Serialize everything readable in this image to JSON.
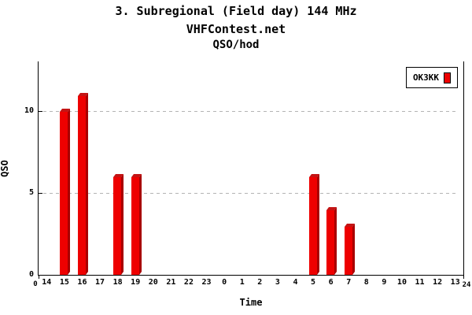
{
  "header": {
    "title": "3. Subregional (Field day) 144 MHz",
    "subtitle": "VHFContest.net",
    "series_label": "QSO/hod"
  },
  "legend": {
    "entries": [
      {
        "label": "OK3KK",
        "color": "#ee0000"
      }
    ]
  },
  "chart_data": {
    "type": "bar",
    "title": "3. Subregional (Field day) 144 MHz",
    "subtitle": "VHFContest.net",
    "series_label": "QSO/hod",
    "xlabel": "Time",
    "ylabel": "QSO",
    "x_categories": [
      "14",
      "15",
      "16",
      "17",
      "18",
      "19",
      "20",
      "21",
      "22",
      "23",
      "0",
      "1",
      "2",
      "3",
      "4",
      "5",
      "6",
      "7",
      "8",
      "9",
      "10",
      "11",
      "12",
      "13"
    ],
    "x_boundary_labels": [
      "0",
      "24"
    ],
    "y_ticks": [
      0,
      5,
      10
    ],
    "ylim": [
      0,
      13.1
    ],
    "xlim_hours": 24,
    "grid": "horizontal dashed at y=5 and y=10",
    "legend_position": "top-right",
    "series": [
      {
        "name": "OK3KK",
        "color": "#ee0000",
        "points": [
          {
            "hour": "15",
            "value": 10
          },
          {
            "hour": "16",
            "value": 11
          },
          {
            "hour": "18",
            "value": 6
          },
          {
            "hour": "19",
            "value": 6
          },
          {
            "hour": "5",
            "value": 6
          },
          {
            "hour": "6",
            "value": 4
          },
          {
            "hour": "7",
            "value": 3
          }
        ]
      }
    ],
    "colors": {
      "bar_face": "#ee0000",
      "bar_side": "#a80000",
      "bar_top": "#c41414",
      "grid": "#b4b4b4",
      "axis": "#000000",
      "background": "#ffffff"
    }
  }
}
